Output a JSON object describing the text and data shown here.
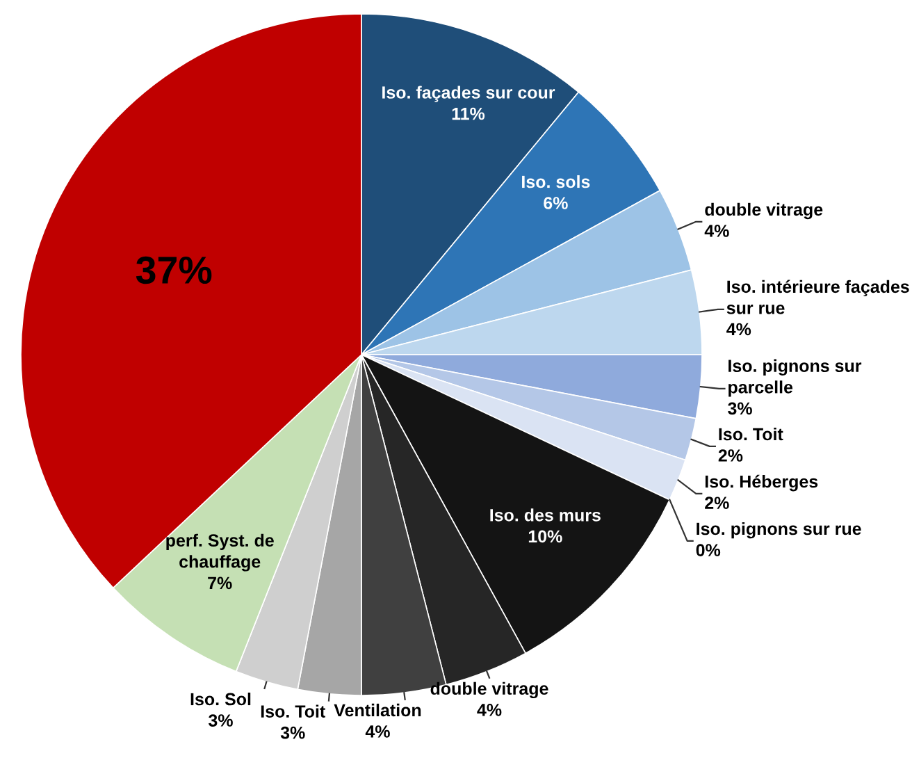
{
  "chart_data": {
    "type": "pie",
    "categories": [
      "Iso. façades sur cour",
      "Iso. sols",
      "double vitrage",
      "Iso. intérieure façades\nsur rue",
      "Iso. pignons sur\nparcelle",
      "Iso. Toit",
      "Iso. Héberges",
      "Iso. pignons sur rue",
      "Iso. des murs",
      "double vitrage",
      "Ventilation",
      "Iso. Toit",
      "Iso. Sol",
      "perf. Syst. de\nchauffage",
      null
    ],
    "values": [
      11,
      6,
      4,
      4,
      3,
      2,
      2,
      0,
      10,
      4,
      4,
      3,
      3,
      7,
      37
    ],
    "value_labels": [
      "11%",
      "6%",
      "4%",
      "4%",
      "3%",
      "2%",
      "2%",
      "0%",
      "10%",
      "4%",
      "4%",
      "3%",
      "3%",
      "7%",
      "37%"
    ],
    "colors": [
      "#1f4e79",
      "#2e75b6",
      "#9dc3e6",
      "#bdd7ee",
      "#8faadc",
      "#b4c7e7",
      "#dae3f3",
      "#c9d6ee",
      "#141414",
      "#262626",
      "#404040",
      "#a6a6a6",
      "#cfcfcf",
      "#c5e0b4",
      "#c00000"
    ]
  }
}
